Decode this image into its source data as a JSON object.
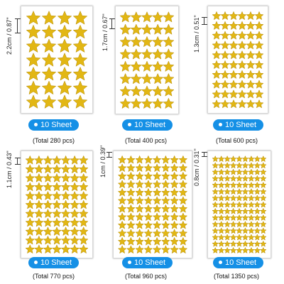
{
  "colors": {
    "star_fill": "#e2b714",
    "star_stroke": "#b58a00",
    "badge": "#1590e6"
  },
  "icons": {
    "star": "star-sticker-icon"
  },
  "panels": [
    {
      "size": "2.2cm / 0.87\"",
      "badge": "10 Sheet",
      "total": "(Total 280 pcs)",
      "cols": 4,
      "rows": 7
    },
    {
      "size": "1.7cm / 0.67\"",
      "badge": "10 Sheet",
      "total": "(Total 400 pcs)",
      "cols": 5,
      "rows": 8
    },
    {
      "size": "1.3cm / 0.51\"",
      "badge": "10 Sheet",
      "total": "(Total 600 pcs)",
      "cols": 6,
      "rows": 10
    },
    {
      "size": "1.1cm / 0.43\"",
      "badge": "10 Sheet",
      "total": "(Total 770 pcs)",
      "cols": 7,
      "rows": 11
    },
    {
      "size": "1cm / 0.39\"",
      "badge": "10 Sheet",
      "total": "(Total 960 pcs)",
      "cols": 8,
      "rows": 12
    },
    {
      "size": "0.8cm / 0.31\"",
      "badge": "10 Sheet",
      "total": "(Total 1350 pcs)",
      "cols": 9,
      "rows": 15
    }
  ]
}
